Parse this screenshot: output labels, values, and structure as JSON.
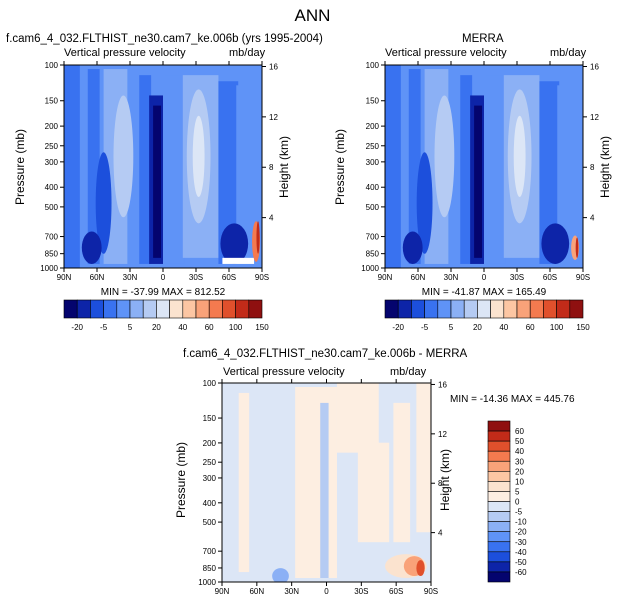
{
  "title": "ANN",
  "chart_data": [
    {
      "type": "heatmap",
      "title": "f.cam6_4_032.FLTHIST_ne30.cam7_ke.006b (yrs 1995-2004)",
      "subtitle_left": "Vertical pressure velocity",
      "subtitle_right": "mb/day",
      "ylabel": "Pressure (mb)",
      "y2label": "Height (km)",
      "x_ticks": [
        "90N",
        "60N",
        "30N",
        "0",
        "30S",
        "60S",
        "90S"
      ],
      "y_ticks": [
        "100",
        "150",
        "200",
        "250",
        "300",
        "400",
        "500",
        "700",
        "850",
        "1000"
      ],
      "y2_ticks": [
        "16",
        "12",
        "8",
        "4"
      ],
      "stats": "MIN = -37.99   MAX = 812.52",
      "colorbar_labels": [
        "-20",
        "-5",
        "5",
        "20",
        "40",
        "60",
        "100",
        "150"
      ]
    },
    {
      "type": "heatmap",
      "title": "MERRA",
      "subtitle_left": "Vertical pressure velocity",
      "subtitle_right": "mb/day",
      "ylabel": "Pressure (mb)",
      "y2label": "Height (km)",
      "x_ticks": [
        "90N",
        "60N",
        "30N",
        "0",
        "30S",
        "60S",
        "90S"
      ],
      "y_ticks": [
        "100",
        "150",
        "200",
        "250",
        "300",
        "400",
        "500",
        "700",
        "850",
        "1000"
      ],
      "y2_ticks": [
        "16",
        "12",
        "8",
        "4"
      ],
      "stats": "MIN = -41.87   MAX = 165.49",
      "colorbar_labels": [
        "-20",
        "-5",
        "5",
        "20",
        "40",
        "60",
        "100",
        "150"
      ]
    },
    {
      "type": "heatmap",
      "title": "f.cam6_4_032.FLTHIST_ne30.cam7_ke.006b - MERRA",
      "subtitle_left": "Vertical pressure velocity",
      "subtitle_right": "mb/day",
      "ylabel": "Pressure (mb)",
      "y2label": "Height (km)",
      "x_ticks": [
        "90N",
        "60N",
        "30N",
        "0",
        "30S",
        "60S",
        "90S"
      ],
      "y_ticks": [
        "100",
        "150",
        "200",
        "250",
        "300",
        "400",
        "500",
        "700",
        "850",
        "1000"
      ],
      "y2_ticks": [
        "16",
        "12",
        "8",
        "4"
      ],
      "stats": "MIN = -14.36   MAX = 445.76",
      "colorbar_labels": [
        "60",
        "50",
        "40",
        "30",
        "20",
        "10",
        "5",
        "0",
        "-5",
        "-10",
        "-20",
        "-30",
        "-40",
        "-50",
        "-60"
      ]
    }
  ],
  "colors": {
    "cb_abs": [
      "#04046e",
      "#0d24a8",
      "#1c4fdc",
      "#3972f0",
      "#5f93f7",
      "#8bb0f5",
      "#b5cbf3",
      "#dce6f6",
      "#fbe3cf",
      "#fcc6a3",
      "#f9a279",
      "#f47a4f",
      "#e0502c",
      "#c22b19",
      "#8f1010"
    ],
    "cb_diff": [
      "#8f1010",
      "#c22b19",
      "#e0502c",
      "#f47a4f",
      "#f9a279",
      "#fcc6a3",
      "#fbe3cf",
      "#fdeee1",
      "#dce6f6",
      "#b5cbf3",
      "#8bb0f5",
      "#5f93f7",
      "#3972f0",
      "#1c4fdc",
      "#0d24a8",
      "#04046e"
    ]
  }
}
